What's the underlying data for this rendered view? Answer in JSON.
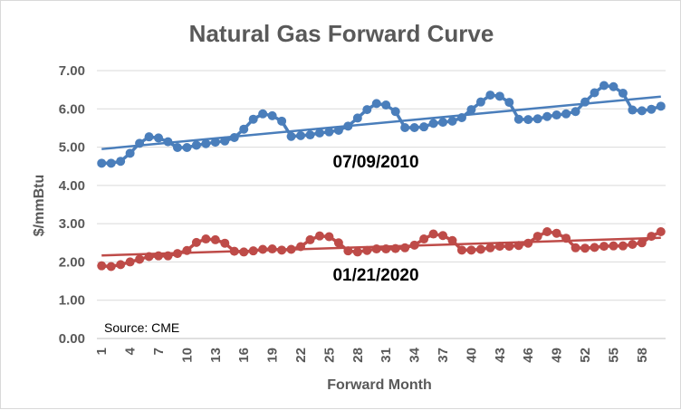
{
  "chart_data": {
    "type": "line",
    "title": "Natural Gas Forward Curve",
    "xlabel": "Forward Month",
    "ylabel": "$/mmBtu",
    "ylim": [
      0,
      7
    ],
    "y_ticks": [
      "0.00",
      "1.00",
      "2.00",
      "3.00",
      "4.00",
      "5.00",
      "6.00",
      "7.00"
    ],
    "x_tick_labels": [
      "1",
      "4",
      "7",
      "10",
      "13",
      "16",
      "19",
      "22",
      "25",
      "28",
      "31",
      "34",
      "37",
      "40",
      "43",
      "46",
      "49",
      "52",
      "55",
      "58"
    ],
    "x_tick_values": [
      1,
      4,
      7,
      10,
      13,
      16,
      19,
      22,
      25,
      28,
      31,
      34,
      37,
      40,
      43,
      46,
      49,
      52,
      55,
      58
    ],
    "x_range": [
      1,
      60
    ],
    "grid": true,
    "source": "Source: CME",
    "series": [
      {
        "name": "07/09/2010",
        "color": "#4a7ebb",
        "trend": [
          4.95,
          6.32
        ],
        "values": [
          4.58,
          4.58,
          4.63,
          4.84,
          5.1,
          5.27,
          5.24,
          5.14,
          4.99,
          4.99,
          5.05,
          5.09,
          5.13,
          5.16,
          5.25,
          5.47,
          5.73,
          5.87,
          5.82,
          5.68,
          5.28,
          5.3,
          5.32,
          5.37,
          5.4,
          5.44,
          5.55,
          5.76,
          5.98,
          6.14,
          6.1,
          5.93,
          5.51,
          5.51,
          5.53,
          5.62,
          5.65,
          5.68,
          5.77,
          5.98,
          6.18,
          6.36,
          6.33,
          6.17,
          5.73,
          5.72,
          5.74,
          5.8,
          5.84,
          5.87,
          5.93,
          6.18,
          6.42,
          6.61,
          6.58,
          6.41,
          5.97,
          5.95,
          5.99,
          6.07
        ]
      },
      {
        "name": "01/21/2020",
        "color": "#be4b48",
        "trend": [
          2.17,
          2.63
        ],
        "values": [
          1.9,
          1.88,
          1.93,
          2.0,
          2.07,
          2.14,
          2.16,
          2.16,
          2.22,
          2.3,
          2.51,
          2.6,
          2.58,
          2.49,
          2.28,
          2.26,
          2.29,
          2.33,
          2.34,
          2.31,
          2.33,
          2.4,
          2.58,
          2.68,
          2.66,
          2.5,
          2.29,
          2.26,
          2.3,
          2.34,
          2.34,
          2.35,
          2.37,
          2.44,
          2.6,
          2.73,
          2.69,
          2.56,
          2.31,
          2.31,
          2.33,
          2.37,
          2.41,
          2.41,
          2.43,
          2.49,
          2.67,
          2.79,
          2.75,
          2.62,
          2.37,
          2.36,
          2.38,
          2.41,
          2.42,
          2.42,
          2.46,
          2.5,
          2.67,
          2.79
        ]
      }
    ]
  }
}
